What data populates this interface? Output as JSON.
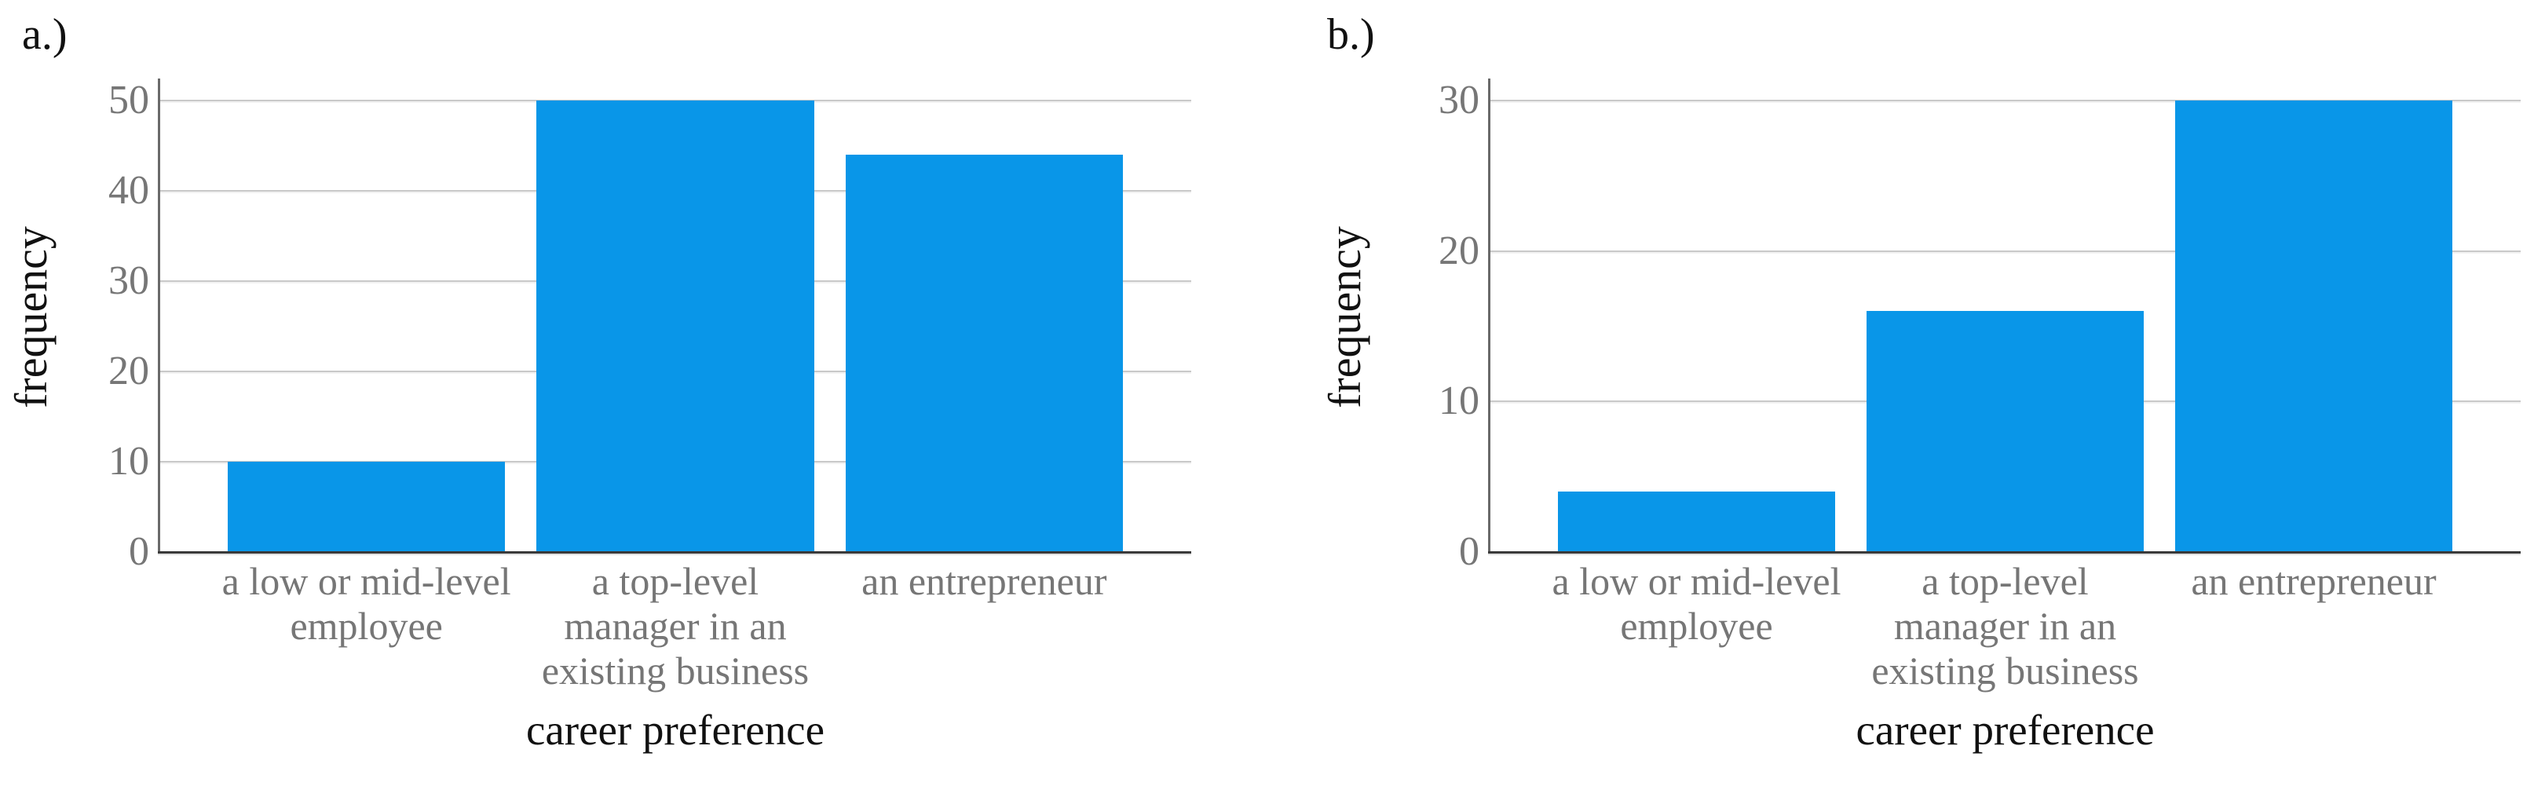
{
  "figure": {
    "background": "#ffffff",
    "description_labels": {
      "panel_a": "a.)",
      "panel_b": "b.)"
    }
  },
  "colors": {
    "bar_fill": "#0996e8",
    "tick_label": "#767676",
    "category_label": "#767676",
    "gridline": "#c9c9c9",
    "y_axis_line": "#6a6a6a",
    "x_axis_line": "#3a3a3a",
    "axis_title_text": "#111111",
    "panel_label_text": "#111111"
  },
  "chart_data": [
    {
      "type": "bar",
      "panel_label": "a.)",
      "title": "",
      "xlabel": "career preference",
      "ylabel": "frequency",
      "categories": [
        "a low or mid-level\nemployee",
        "a top-level\nmanager in an\nexisting business",
        "an entrepreneur"
      ],
      "values": [
        10,
        50,
        44
      ],
      "yticks": [
        0,
        10,
        20,
        30,
        40,
        50
      ],
      "ylim": [
        0,
        50
      ],
      "grid": true,
      "legend": "none"
    },
    {
      "type": "bar",
      "panel_label": "b.)",
      "title": "",
      "xlabel": "career preference",
      "ylabel": "frequency",
      "categories": [
        "a low or mid-level\nemployee",
        "a top-level\nmanager in an\nexisting business",
        "an entrepreneur"
      ],
      "values": [
        4,
        16,
        30
      ],
      "yticks": [
        0,
        10,
        20,
        30
      ],
      "ylim": [
        0,
        30
      ],
      "grid": true,
      "legend": "none"
    }
  ]
}
